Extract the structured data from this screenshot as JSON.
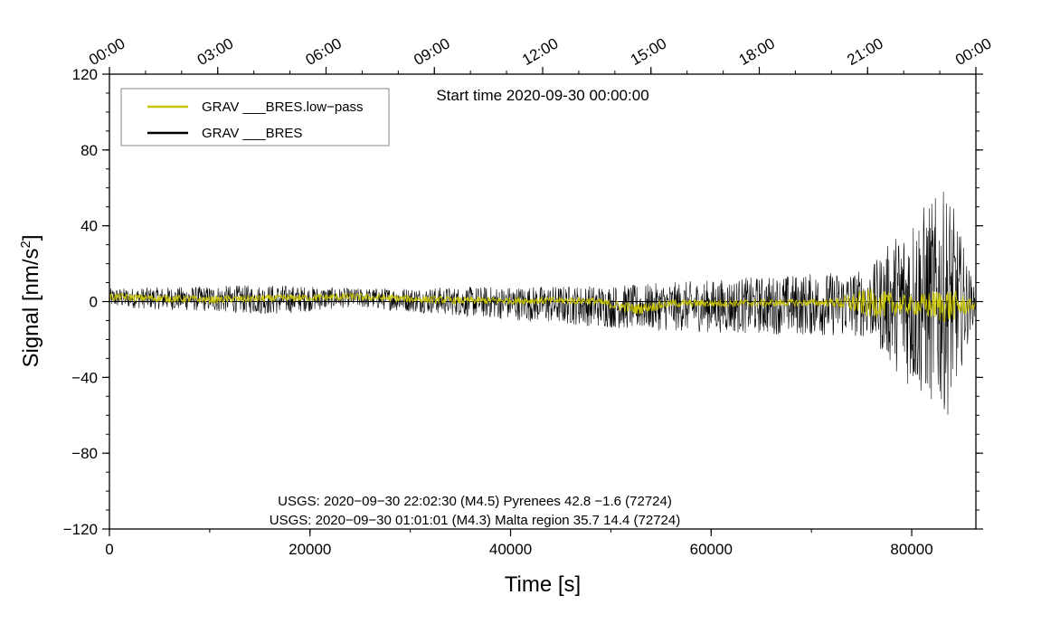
{
  "chart_data": {
    "type": "line",
    "start_time": "Start time 2020-09-30 00:00:00",
    "xlabel": "Time [s]",
    "ylabel_main": "Signal [nm/s",
    "ylabel_sup": "2",
    "ylabel_end": "]",
    "xlim": [
      0,
      86400
    ],
    "ylim": [
      -120,
      120
    ],
    "x_ticks": [
      0,
      20000,
      40000,
      60000,
      80000
    ],
    "x_tick_labels": [
      "0",
      "20000",
      "40000",
      "60000",
      "80000"
    ],
    "y_ticks": [
      -120,
      -80,
      -40,
      0,
      40,
      80,
      120
    ],
    "y_tick_labels": [
      "−120",
      "−80",
      "−40",
      "0",
      "40",
      "80",
      "120"
    ],
    "top_ticks_seconds": [
      0,
      10800,
      21600,
      32400,
      43200,
      54000,
      64800,
      75600,
      86400
    ],
    "top_tick_labels": [
      "00:00",
      "03:00",
      "06:00",
      "09:00",
      "12:00",
      "15:00",
      "18:00",
      "21:00",
      "00:00"
    ],
    "legend_position": "top-left",
    "series": [
      {
        "name": "GRAV ___BRES.low−pass",
        "color": "#c8c400",
        "envelope": [
          {
            "x": 0,
            "y": 2.5,
            "amp": 2
          },
          {
            "x": 10000,
            "y": 1,
            "amp": 2
          },
          {
            "x": 24000,
            "y": 2.5,
            "amp": 2
          },
          {
            "x": 35000,
            "y": 0.5,
            "amp": 2
          },
          {
            "x": 48000,
            "y": 0.5,
            "amp": 2
          },
          {
            "x": 52500,
            "y": -4,
            "amp": 3
          },
          {
            "x": 56000,
            "y": -1,
            "amp": 2
          },
          {
            "x": 72000,
            "y": -0.5,
            "amp": 2
          },
          {
            "x": 75800,
            "y": -1,
            "amp": 8
          },
          {
            "x": 80000,
            "y": -2,
            "amp": 5
          },
          {
            "x": 83600,
            "y": -2,
            "amp": 10
          },
          {
            "x": 86400,
            "y": -2,
            "amp": 2
          }
        ]
      },
      {
        "name": "GRAV ___BRES",
        "color": "#000000",
        "envelope": [
          {
            "x": 0,
            "y": 2,
            "amp": 5
          },
          {
            "x": 16500,
            "y": 1,
            "amp": 8
          },
          {
            "x": 24000,
            "y": 2,
            "amp": 5
          },
          {
            "x": 52500,
            "y": -3,
            "amp": 12
          },
          {
            "x": 75800,
            "y": -1,
            "amp": 18
          },
          {
            "x": 80100,
            "y": 0,
            "amp": 48
          },
          {
            "x": 83700,
            "y": 0,
            "amp": 60
          },
          {
            "x": 86400,
            "y": -1,
            "amp": 5
          }
        ]
      }
    ],
    "annotations": [
      "USGS: 2020−09−30 22:02:30 (M4.5) Pyrenees 42.8 −1.6 (72724)",
      "USGS: 2020−09−30 01:01:01 (M4.3) Malta region 35.7 14.4 (72724)"
    ]
  }
}
